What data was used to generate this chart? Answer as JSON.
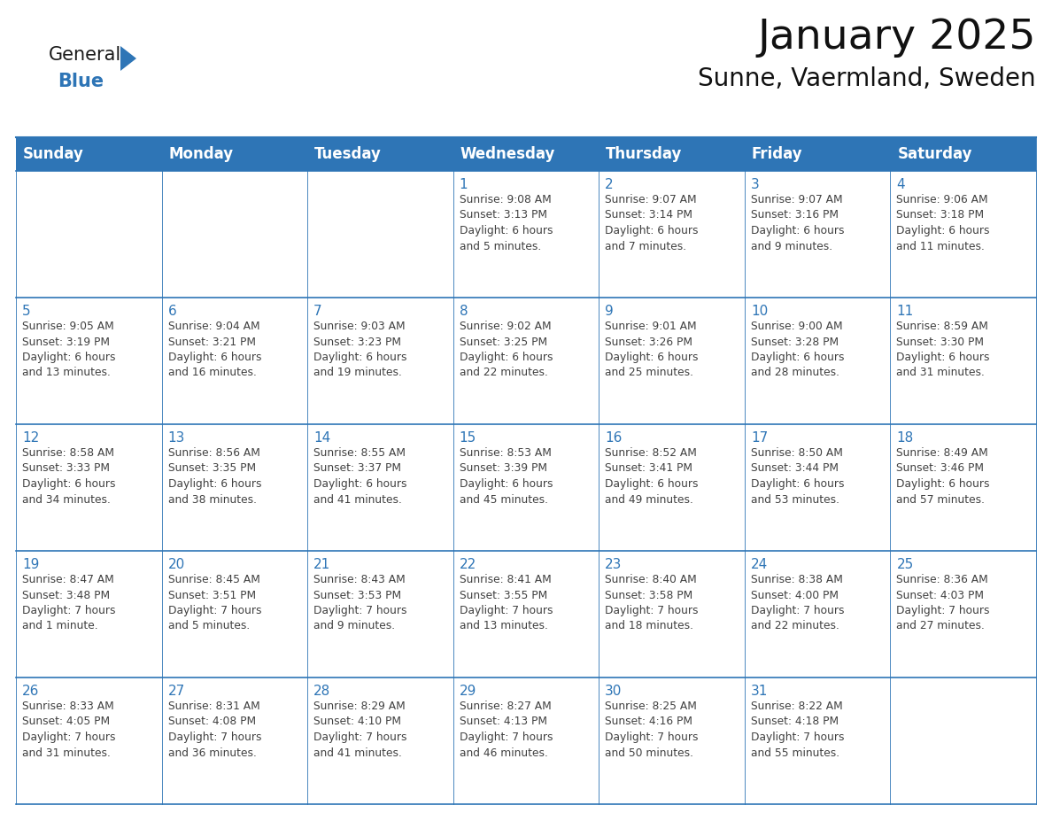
{
  "title": "January 2025",
  "subtitle": "Sunne, Vaermland, Sweden",
  "header_color": "#2E75B6",
  "header_text_color": "#FFFFFF",
  "cell_bg_white": "#FFFFFF",
  "cell_bg_gray": "#F2F2F2",
  "cell_border_color": "#2E75B6",
  "day_num_color": "#2E75B6",
  "cell_text_color": "#404040",
  "logo_general_color": "#1a1a1a",
  "logo_blue_color": "#2E75B6",
  "logo_triangle_color": "#2E75B6",
  "days_of_week": [
    "Sunday",
    "Monday",
    "Tuesday",
    "Wednesday",
    "Thursday",
    "Friday",
    "Saturday"
  ],
  "weeks": [
    [
      {
        "day": "",
        "text": ""
      },
      {
        "day": "",
        "text": ""
      },
      {
        "day": "",
        "text": ""
      },
      {
        "day": "1",
        "text": "Sunrise: 9:08 AM\nSunset: 3:13 PM\nDaylight: 6 hours\nand 5 minutes."
      },
      {
        "day": "2",
        "text": "Sunrise: 9:07 AM\nSunset: 3:14 PM\nDaylight: 6 hours\nand 7 minutes."
      },
      {
        "day": "3",
        "text": "Sunrise: 9:07 AM\nSunset: 3:16 PM\nDaylight: 6 hours\nand 9 minutes."
      },
      {
        "day": "4",
        "text": "Sunrise: 9:06 AM\nSunset: 3:18 PM\nDaylight: 6 hours\nand 11 minutes."
      }
    ],
    [
      {
        "day": "5",
        "text": "Sunrise: 9:05 AM\nSunset: 3:19 PM\nDaylight: 6 hours\nand 13 minutes."
      },
      {
        "day": "6",
        "text": "Sunrise: 9:04 AM\nSunset: 3:21 PM\nDaylight: 6 hours\nand 16 minutes."
      },
      {
        "day": "7",
        "text": "Sunrise: 9:03 AM\nSunset: 3:23 PM\nDaylight: 6 hours\nand 19 minutes."
      },
      {
        "day": "8",
        "text": "Sunrise: 9:02 AM\nSunset: 3:25 PM\nDaylight: 6 hours\nand 22 minutes."
      },
      {
        "day": "9",
        "text": "Sunrise: 9:01 AM\nSunset: 3:26 PM\nDaylight: 6 hours\nand 25 minutes."
      },
      {
        "day": "10",
        "text": "Sunrise: 9:00 AM\nSunset: 3:28 PM\nDaylight: 6 hours\nand 28 minutes."
      },
      {
        "day": "11",
        "text": "Sunrise: 8:59 AM\nSunset: 3:30 PM\nDaylight: 6 hours\nand 31 minutes."
      }
    ],
    [
      {
        "day": "12",
        "text": "Sunrise: 8:58 AM\nSunset: 3:33 PM\nDaylight: 6 hours\nand 34 minutes."
      },
      {
        "day": "13",
        "text": "Sunrise: 8:56 AM\nSunset: 3:35 PM\nDaylight: 6 hours\nand 38 minutes."
      },
      {
        "day": "14",
        "text": "Sunrise: 8:55 AM\nSunset: 3:37 PM\nDaylight: 6 hours\nand 41 minutes."
      },
      {
        "day": "15",
        "text": "Sunrise: 8:53 AM\nSunset: 3:39 PM\nDaylight: 6 hours\nand 45 minutes."
      },
      {
        "day": "16",
        "text": "Sunrise: 8:52 AM\nSunset: 3:41 PM\nDaylight: 6 hours\nand 49 minutes."
      },
      {
        "day": "17",
        "text": "Sunrise: 8:50 AM\nSunset: 3:44 PM\nDaylight: 6 hours\nand 53 minutes."
      },
      {
        "day": "18",
        "text": "Sunrise: 8:49 AM\nSunset: 3:46 PM\nDaylight: 6 hours\nand 57 minutes."
      }
    ],
    [
      {
        "day": "19",
        "text": "Sunrise: 8:47 AM\nSunset: 3:48 PM\nDaylight: 7 hours\nand 1 minute."
      },
      {
        "day": "20",
        "text": "Sunrise: 8:45 AM\nSunset: 3:51 PM\nDaylight: 7 hours\nand 5 minutes."
      },
      {
        "day": "21",
        "text": "Sunrise: 8:43 AM\nSunset: 3:53 PM\nDaylight: 7 hours\nand 9 minutes."
      },
      {
        "day": "22",
        "text": "Sunrise: 8:41 AM\nSunset: 3:55 PM\nDaylight: 7 hours\nand 13 minutes."
      },
      {
        "day": "23",
        "text": "Sunrise: 8:40 AM\nSunset: 3:58 PM\nDaylight: 7 hours\nand 18 minutes."
      },
      {
        "day": "24",
        "text": "Sunrise: 8:38 AM\nSunset: 4:00 PM\nDaylight: 7 hours\nand 22 minutes."
      },
      {
        "day": "25",
        "text": "Sunrise: 8:36 AM\nSunset: 4:03 PM\nDaylight: 7 hours\nand 27 minutes."
      }
    ],
    [
      {
        "day": "26",
        "text": "Sunrise: 8:33 AM\nSunset: 4:05 PM\nDaylight: 7 hours\nand 31 minutes."
      },
      {
        "day": "27",
        "text": "Sunrise: 8:31 AM\nSunset: 4:08 PM\nDaylight: 7 hours\nand 36 minutes."
      },
      {
        "day": "28",
        "text": "Sunrise: 8:29 AM\nSunset: 4:10 PM\nDaylight: 7 hours\nand 41 minutes."
      },
      {
        "day": "29",
        "text": "Sunrise: 8:27 AM\nSunset: 4:13 PM\nDaylight: 7 hours\nand 46 minutes."
      },
      {
        "day": "30",
        "text": "Sunrise: 8:25 AM\nSunset: 4:16 PM\nDaylight: 7 hours\nand 50 minutes."
      },
      {
        "day": "31",
        "text": "Sunrise: 8:22 AM\nSunset: 4:18 PM\nDaylight: 7 hours\nand 55 minutes."
      },
      {
        "day": "",
        "text": ""
      }
    ]
  ],
  "title_fontsize": 34,
  "subtitle_fontsize": 20,
  "header_fontsize": 12,
  "day_num_fontsize": 11,
  "cell_text_fontsize": 8.8
}
